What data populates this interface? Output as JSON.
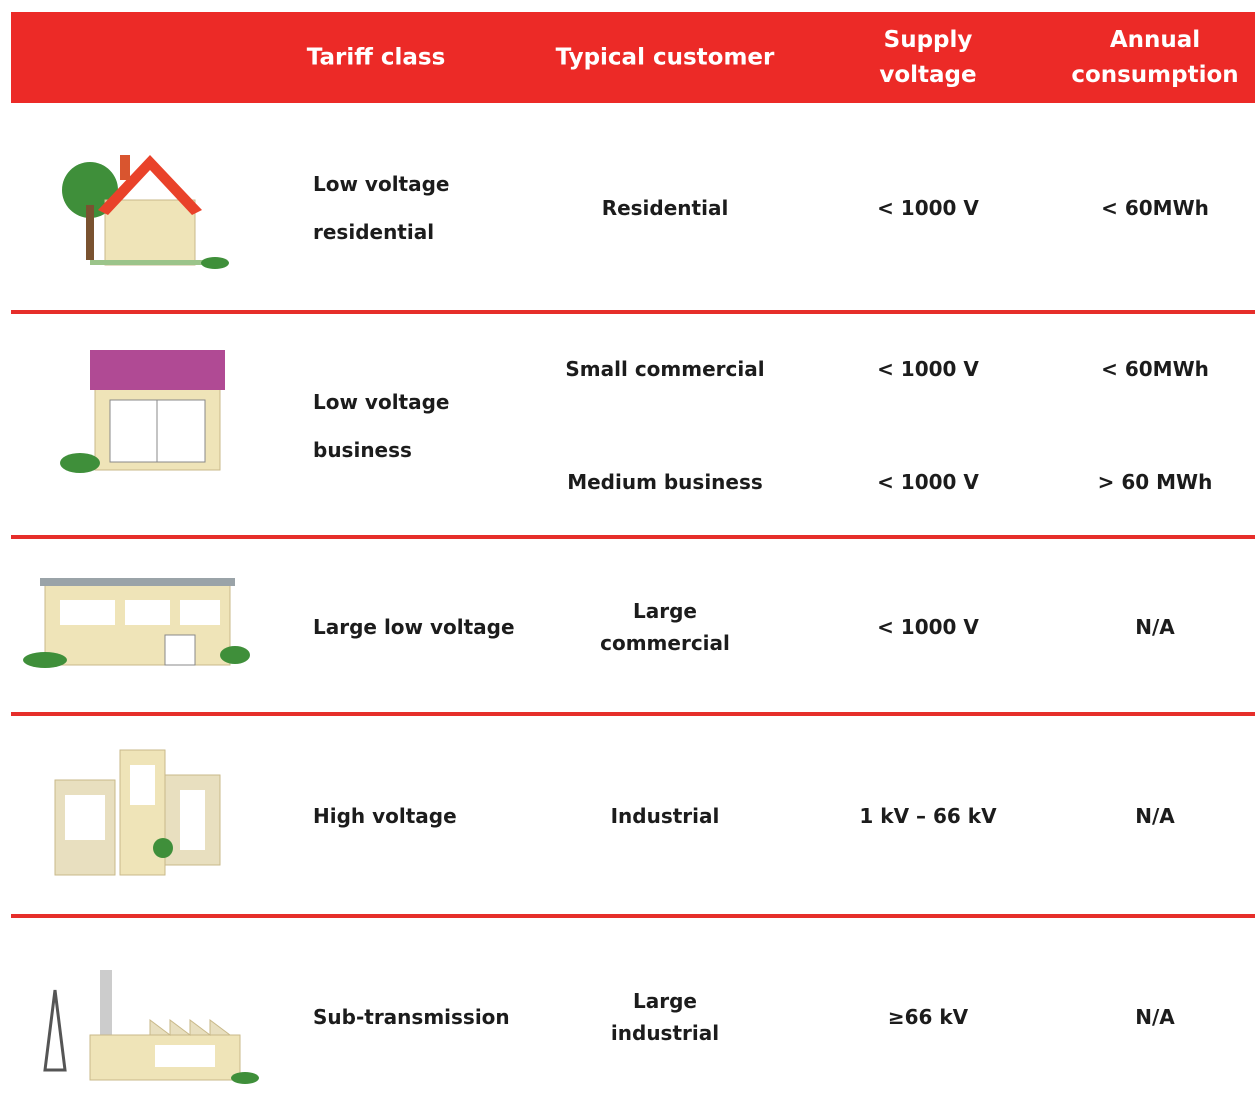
{
  "table": {
    "headers": [
      "Tariff class",
      "Typical customer",
      "Supply voltage",
      "Annual consumption"
    ],
    "rows": [
      {
        "tariff_class": "Low voltage residential",
        "entries": [
          [
            "Residential",
            "< 1000 V",
            "< 60MWh"
          ]
        ]
      },
      {
        "tariff_class": "Low voltage business",
        "entries": [
          [
            "Small commercial",
            "< 1000 V",
            "< 60MWh"
          ],
          [
            "Medium business",
            "< 1000 V",
            "> 60 MWh"
          ]
        ]
      },
      {
        "tariff_class": "Large low voltage",
        "entries": [
          [
            "Large commercial",
            "< 1000 V",
            "N/A"
          ]
        ]
      },
      {
        "tariff_class": "High voltage",
        "entries": [
          [
            "Industrial",
            "1 kV – 66 kV",
            "N/A"
          ]
        ]
      },
      {
        "tariff_class": "Sub-transmission",
        "entries": [
          [
            "Large industrial",
            "≥66 kV",
            "N/A"
          ]
        ]
      }
    ]
  }
}
